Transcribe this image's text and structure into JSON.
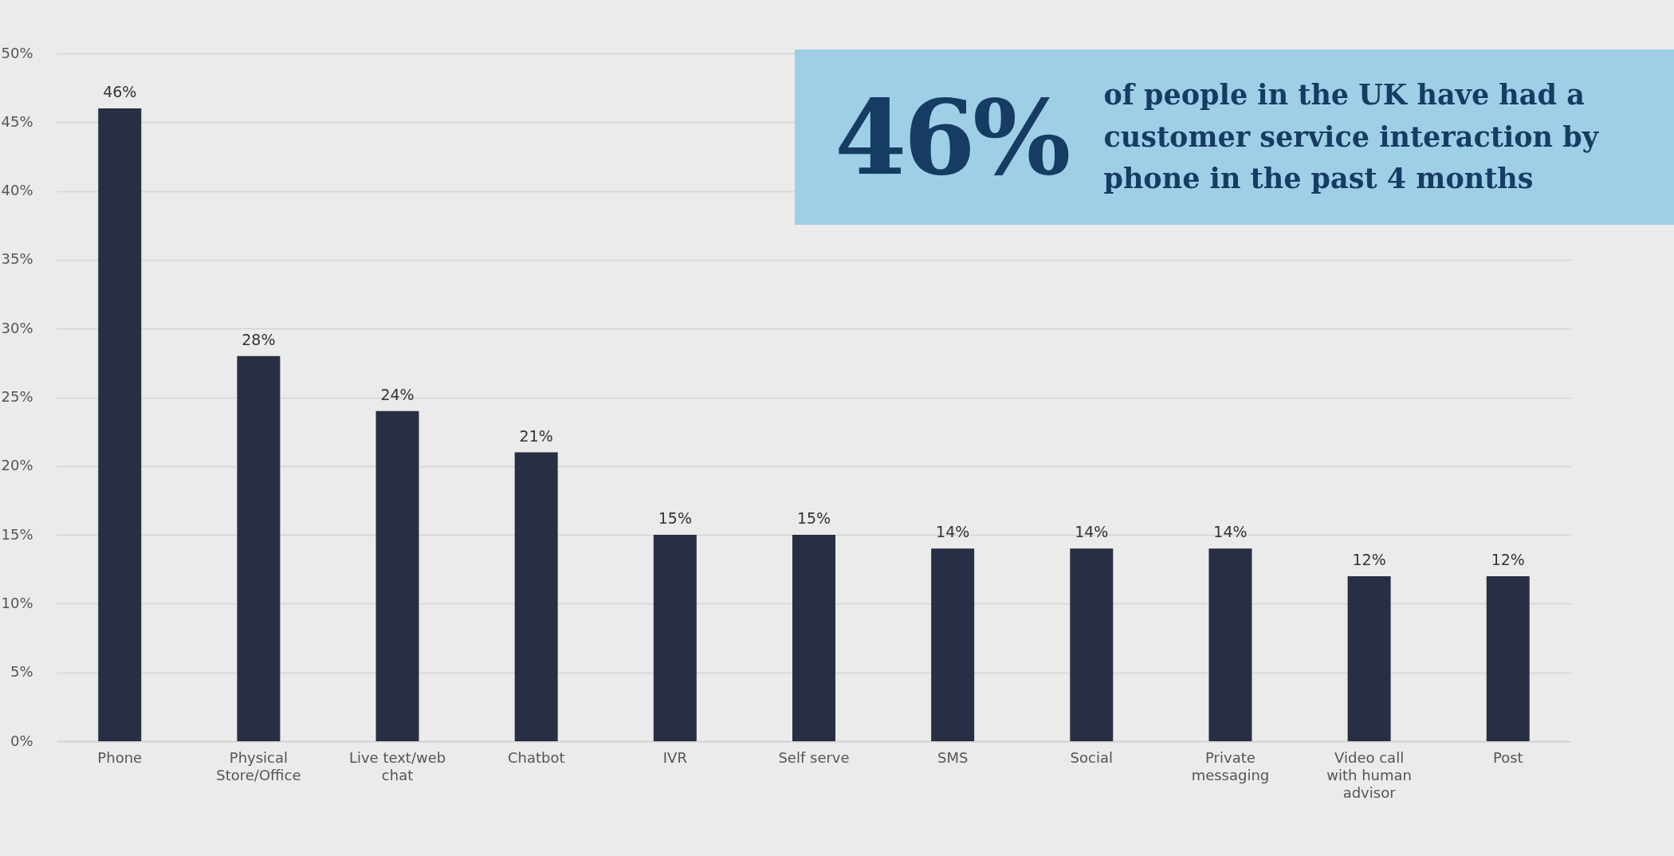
{
  "chart_data": {
    "type": "bar",
    "categories": [
      "Phone",
      "Physical Store/Office",
      "Live text/web chat",
      "Chatbot",
      "IVR",
      "Self serve",
      "SMS",
      "Social",
      "Private messaging",
      "Video call with human advisor",
      "Post"
    ],
    "values": [
      46,
      28,
      24,
      21,
      15,
      15,
      14,
      14,
      14,
      12,
      12
    ],
    "value_labels": [
      "46%",
      "28%",
      "24%",
      "21%",
      "15%",
      "15%",
      "14%",
      "14%",
      "14%",
      "12%",
      "12%"
    ],
    "color": "#282e44",
    "ylim": [
      0,
      50
    ],
    "yticks": [
      {
        "value": 0,
        "label": "0%"
      },
      {
        "value": 5,
        "label": "5%"
      },
      {
        "value": 10,
        "label": "10%"
      },
      {
        "value": 15,
        "label": "15%"
      },
      {
        "value": 20,
        "label": "20%"
      },
      {
        "value": 25,
        "label": "25%"
      },
      {
        "value": 30,
        "label": "30%"
      },
      {
        "value": 35,
        "label": "35%"
      },
      {
        "value": 40,
        "label": "40%"
      },
      {
        "value": 45,
        "label": "45%"
      },
      {
        "value": 50,
        "label": "50%"
      }
    ],
    "grid": "y",
    "annotations": [
      "46% of people in the UK have had a customer service interaction by phone in the past 4 months"
    ]
  }
}
